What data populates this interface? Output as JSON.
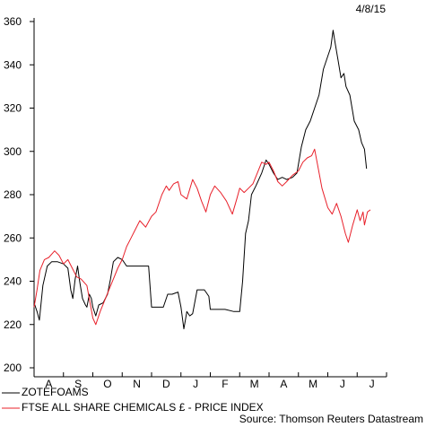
{
  "chart_data": {
    "type": "line",
    "date_label": "4/8/15",
    "source": "Source: Thomson Reuters Datastream",
    "ylim": [
      200,
      360
    ],
    "yticks": [
      200,
      220,
      240,
      260,
      280,
      300,
      320,
      340,
      360
    ],
    "xticks": [
      "A",
      "S",
      "O",
      "N",
      "D",
      "J",
      "F",
      "M",
      "A",
      "M",
      "J",
      "J"
    ],
    "x_months": 12,
    "series": [
      {
        "name": "ZOTEFOAMS",
        "color": "#000000",
        "points": [
          [
            0.0,
            230
          ],
          [
            0.1,
            226
          ],
          [
            0.18,
            222
          ],
          [
            0.3,
            238
          ],
          [
            0.45,
            247
          ],
          [
            0.6,
            249
          ],
          [
            0.8,
            249
          ],
          [
            1.0,
            248
          ],
          [
            1.15,
            246
          ],
          [
            1.25,
            236
          ],
          [
            1.32,
            232
          ],
          [
            1.4,
            241
          ],
          [
            1.48,
            247
          ],
          [
            1.55,
            240
          ],
          [
            1.65,
            232
          ],
          [
            1.75,
            229
          ],
          [
            1.8,
            228
          ],
          [
            1.88,
            234
          ],
          [
            1.95,
            232
          ],
          [
            2.0,
            228
          ],
          [
            2.1,
            224
          ],
          [
            2.2,
            229
          ],
          [
            2.35,
            230
          ],
          [
            2.5,
            234
          ],
          [
            2.6,
            241
          ],
          [
            2.7,
            249
          ],
          [
            2.85,
            251
          ],
          [
            3.0,
            250
          ],
          [
            3.15,
            247
          ],
          [
            3.4,
            247
          ],
          [
            3.7,
            247
          ],
          [
            3.9,
            247
          ],
          [
            4.0,
            228
          ],
          [
            4.15,
            228
          ],
          [
            4.4,
            228
          ],
          [
            4.55,
            234
          ],
          [
            4.7,
            234
          ],
          [
            4.9,
            235
          ],
          [
            5.0,
            228
          ],
          [
            5.1,
            218
          ],
          [
            5.15,
            222
          ],
          [
            5.2,
            226
          ],
          [
            5.3,
            224
          ],
          [
            5.4,
            225
          ],
          [
            5.55,
            236
          ],
          [
            5.8,
            236
          ],
          [
            5.95,
            233
          ],
          [
            6.0,
            227
          ],
          [
            6.2,
            227
          ],
          [
            6.5,
            227
          ],
          [
            6.8,
            226
          ],
          [
            7.0,
            226
          ],
          [
            7.1,
            240
          ],
          [
            7.2,
            262
          ],
          [
            7.3,
            268
          ],
          [
            7.4,
            280
          ],
          [
            7.55,
            284
          ],
          [
            7.75,
            290
          ],
          [
            7.9,
            296
          ],
          [
            8.0,
            294
          ],
          [
            8.15,
            290
          ],
          [
            8.3,
            287
          ],
          [
            8.45,
            288
          ],
          [
            8.6,
            287
          ],
          [
            8.8,
            288
          ],
          [
            8.95,
            290
          ],
          [
            9.1,
            302
          ],
          [
            9.25,
            310
          ],
          [
            9.4,
            314
          ],
          [
            9.55,
            320
          ],
          [
            9.7,
            326
          ],
          [
            9.85,
            338
          ],
          [
            10.0,
            344
          ],
          [
            10.1,
            348
          ],
          [
            10.18,
            356
          ],
          [
            10.25,
            350
          ],
          [
            10.35,
            342
          ],
          [
            10.45,
            334
          ],
          [
            10.55,
            336
          ],
          [
            10.62,
            330
          ],
          [
            10.75,
            326
          ],
          [
            10.9,
            314
          ],
          [
            11.05,
            310
          ],
          [
            11.15,
            304
          ],
          [
            11.25,
            301
          ],
          [
            11.32,
            292
          ]
        ]
      },
      {
        "name": "FTSE ALL SHARE CHEMICALS £ - PRICE INDEX",
        "color": "#e8202a",
        "points": [
          [
            0.0,
            228
          ],
          [
            0.1,
            236
          ],
          [
            0.2,
            245
          ],
          [
            0.35,
            250
          ],
          [
            0.5,
            251
          ],
          [
            0.7,
            254
          ],
          [
            0.85,
            252
          ],
          [
            1.0,
            248
          ],
          [
            1.15,
            250
          ],
          [
            1.3,
            246
          ],
          [
            1.45,
            242
          ],
          [
            1.6,
            241
          ],
          [
            1.8,
            238
          ],
          [
            2.0,
            223
          ],
          [
            2.1,
            220
          ],
          [
            2.25,
            226
          ],
          [
            2.4,
            231
          ],
          [
            2.55,
            236
          ],
          [
            2.7,
            241
          ],
          [
            2.85,
            246
          ],
          [
            3.0,
            250
          ],
          [
            3.15,
            256
          ],
          [
            3.3,
            260
          ],
          [
            3.45,
            264
          ],
          [
            3.6,
            268
          ],
          [
            3.8,
            265
          ],
          [
            4.0,
            270
          ],
          [
            4.15,
            272
          ],
          [
            4.35,
            280
          ],
          [
            4.5,
            284
          ],
          [
            4.6,
            282
          ],
          [
            4.75,
            285
          ],
          [
            4.9,
            286
          ],
          [
            5.0,
            280
          ],
          [
            5.2,
            278
          ],
          [
            5.4,
            287
          ],
          [
            5.55,
            283
          ],
          [
            5.7,
            277
          ],
          [
            5.85,
            272
          ],
          [
            6.0,
            280
          ],
          [
            6.15,
            284
          ],
          [
            6.35,
            281
          ],
          [
            6.55,
            277
          ],
          [
            6.75,
            271
          ],
          [
            6.9,
            278
          ],
          [
            7.0,
            283
          ],
          [
            7.15,
            281
          ],
          [
            7.3,
            283
          ],
          [
            7.45,
            285
          ],
          [
            7.6,
            290
          ],
          [
            7.75,
            295
          ],
          [
            7.9,
            294
          ],
          [
            8.0,
            295
          ],
          [
            8.15,
            291
          ],
          [
            8.3,
            286
          ],
          [
            8.45,
            284
          ],
          [
            8.6,
            286
          ],
          [
            8.8,
            289
          ],
          [
            9.0,
            291
          ],
          [
            9.15,
            295
          ],
          [
            9.3,
            297
          ],
          [
            9.45,
            298
          ],
          [
            9.55,
            301
          ],
          [
            9.65,
            294
          ],
          [
            9.8,
            283
          ],
          [
            10.0,
            274
          ],
          [
            10.15,
            271
          ],
          [
            10.3,
            276
          ],
          [
            10.45,
            270
          ],
          [
            10.6,
            262
          ],
          [
            10.7,
            258
          ],
          [
            10.85,
            266
          ],
          [
            11.0,
            273
          ],
          [
            11.1,
            268
          ],
          [
            11.2,
            272
          ],
          [
            11.25,
            266
          ],
          [
            11.35,
            272
          ],
          [
            11.45,
            273
          ]
        ]
      }
    ]
  }
}
